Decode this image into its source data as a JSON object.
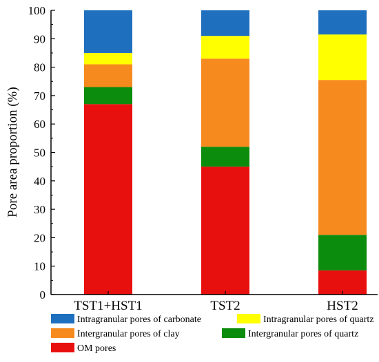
{
  "chart_data": {
    "type": "bar",
    "stacked": true,
    "categories": [
      "TST1+HST1",
      "TST2",
      "HST2"
    ],
    "series": [
      {
        "name": "OM pores",
        "color": "#e8100f",
        "values": [
          67,
          45,
          8.5
        ]
      },
      {
        "name": "Intergranular pores of quartz",
        "color": "#0c8c0c",
        "values": [
          6,
          7,
          12.5
        ]
      },
      {
        "name": "Intergranular pores of clay",
        "color": "#f68a1e",
        "values": [
          8,
          31,
          54.5
        ]
      },
      {
        "name": "Intragranular pores of quartz",
        "color": "#ffff00",
        "values": [
          4,
          8,
          16
        ]
      },
      {
        "name": "Intragranular pores of carbonate",
        "color": "#1f6fbf",
        "values": [
          15,
          9,
          8.5
        ]
      }
    ],
    "ylabel": "Pore area proportion (%)",
    "ylim": [
      0,
      100
    ],
    "yticks": [
      0,
      10,
      20,
      30,
      40,
      50,
      60,
      70,
      80,
      90,
      100
    ],
    "grid": false,
    "legend_position": "bottom",
    "legend_order": [
      "Intragranular pores of carbonate",
      "Intragranular pores of quartz",
      "Intergranular pores of clay",
      "Intergranular pores of quartz",
      "OM pores"
    ]
  }
}
